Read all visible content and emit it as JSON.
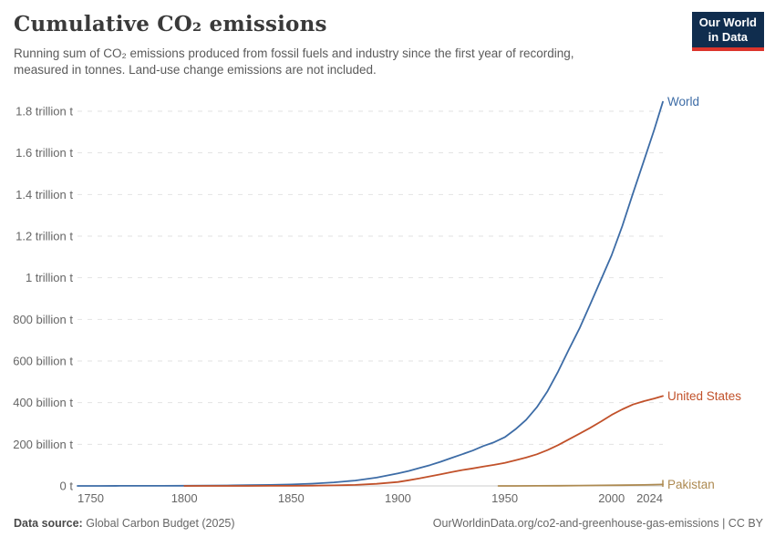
{
  "header": {
    "title": "Cumulative CO₂ emissions",
    "subtitle": "Running sum of CO₂ emissions produced from fossil fuels and industry since the first year of recording,\nmeasured in tonnes. Land-use change emissions are not included."
  },
  "logo": {
    "line1": "Our World",
    "line2": "in Data",
    "bg_color": "#102d4e",
    "bar_color": "#dc352c"
  },
  "footer": {
    "source_label": "Data source:",
    "source_value": "Global Carbon Budget (2025)",
    "link_text": "OurWorldinData.org/co2-and-greenhouse-gas-emissions | CC BY"
  },
  "chart_data": {
    "type": "line",
    "title": "Cumulative CO₂ emissions",
    "xlabel": "",
    "ylabel": "",
    "y_unit": "billion tonnes CO2",
    "x_domain": [
      1750,
      2024
    ],
    "y_domain": [
      0,
      1800
    ],
    "grid": "horizontal-dashed",
    "legend_position": "end-of-line-labels",
    "x_ticks": [
      {
        "year": 1750,
        "label": "1750",
        "anchor": "start"
      },
      {
        "year": 1800,
        "label": "1800",
        "anchor": "middle"
      },
      {
        "year": 1850,
        "label": "1850",
        "anchor": "middle"
      },
      {
        "year": 1900,
        "label": "1900",
        "anchor": "middle"
      },
      {
        "year": 1950,
        "label": "1950",
        "anchor": "middle"
      },
      {
        "year": 2000,
        "label": "2000",
        "anchor": "middle"
      },
      {
        "year": 2024,
        "label": "2024",
        "anchor": "end"
      }
    ],
    "y_ticks": [
      {
        "value": 0,
        "label": "0 t"
      },
      {
        "value": 200,
        "label": "200 billion t"
      },
      {
        "value": 400,
        "label": "400 billion t"
      },
      {
        "value": 600,
        "label": "600 billion t"
      },
      {
        "value": 800,
        "label": "800 billion t"
      },
      {
        "value": 1000,
        "label": "1 trillion t"
      },
      {
        "value": 1200,
        "label": "1.2 trillion t"
      },
      {
        "value": 1400,
        "label": "1.4 trillion t"
      },
      {
        "value": 1600,
        "label": "1.6 trillion t"
      },
      {
        "value": 1800,
        "label": "1.8 trillion t"
      }
    ],
    "series": [
      {
        "name": "World",
        "color": "#3d6ca6",
        "end_tick": false,
        "points": [
          [
            1750,
            0
          ],
          [
            1760,
            0.1
          ],
          [
            1770,
            0.25
          ],
          [
            1780,
            0.4
          ],
          [
            1790,
            0.65
          ],
          [
            1800,
            1
          ],
          [
            1810,
            1.6
          ],
          [
            1820,
            2.4
          ],
          [
            1830,
            3.5
          ],
          [
            1840,
            5
          ],
          [
            1850,
            7
          ],
          [
            1860,
            11
          ],
          [
            1870,
            17
          ],
          [
            1880,
            26
          ],
          [
            1890,
            40
          ],
          [
            1900,
            60
          ],
          [
            1905,
            72
          ],
          [
            1910,
            86
          ],
          [
            1915,
            100
          ],
          [
            1920,
            116
          ],
          [
            1925,
            134
          ],
          [
            1930,
            152
          ],
          [
            1935,
            170
          ],
          [
            1940,
            192
          ],
          [
            1945,
            210
          ],
          [
            1950,
            234
          ],
          [
            1955,
            272
          ],
          [
            1960,
            317
          ],
          [
            1965,
            378
          ],
          [
            1970,
            455
          ],
          [
            1975,
            550
          ],
          [
            1980,
            655
          ],
          [
            1985,
            757
          ],
          [
            1990,
            872
          ],
          [
            1995,
            990
          ],
          [
            2000,
            1108
          ],
          [
            2005,
            1248
          ],
          [
            2010,
            1405
          ],
          [
            2015,
            1558
          ],
          [
            2020,
            1712
          ],
          [
            2024,
            1845
          ]
        ]
      },
      {
        "name": "United States",
        "color": "#c1512a",
        "end_tick": false,
        "points": [
          [
            1800,
            0.03
          ],
          [
            1810,
            0.06
          ],
          [
            1820,
            0.1
          ],
          [
            1830,
            0.18
          ],
          [
            1840,
            0.3
          ],
          [
            1850,
            0.5
          ],
          [
            1860,
            1.1
          ],
          [
            1870,
            2.5
          ],
          [
            1880,
            5
          ],
          [
            1890,
            10
          ],
          [
            1900,
            19
          ],
          [
            1905,
            27
          ],
          [
            1910,
            36
          ],
          [
            1915,
            46
          ],
          [
            1920,
            56
          ],
          [
            1925,
            66
          ],
          [
            1930,
            76
          ],
          [
            1935,
            84
          ],
          [
            1940,
            93
          ],
          [
            1945,
            101
          ],
          [
            1950,
            111
          ],
          [
            1955,
            123
          ],
          [
            1960,
            136
          ],
          [
            1965,
            152
          ],
          [
            1970,
            172
          ],
          [
            1975,
            196
          ],
          [
            1980,
            224
          ],
          [
            1985,
            251
          ],
          [
            1990,
            279
          ],
          [
            1995,
            309
          ],
          [
            2000,
            341
          ],
          [
            2005,
            368
          ],
          [
            2010,
            391
          ],
          [
            2015,
            407
          ],
          [
            2020,
            420
          ],
          [
            2024,
            432
          ]
        ]
      },
      {
        "name": "Pakistan",
        "color": "#ad8a51",
        "end_tick": true,
        "points": [
          [
            1947,
            0.05
          ],
          [
            1955,
            0.2
          ],
          [
            1965,
            0.45
          ],
          [
            1975,
            0.9
          ],
          [
            1985,
            1.6
          ],
          [
            1995,
            2.5
          ],
          [
            2005,
            3.6
          ],
          [
            2015,
            5
          ],
          [
            2024,
            6.8
          ]
        ]
      }
    ]
  }
}
